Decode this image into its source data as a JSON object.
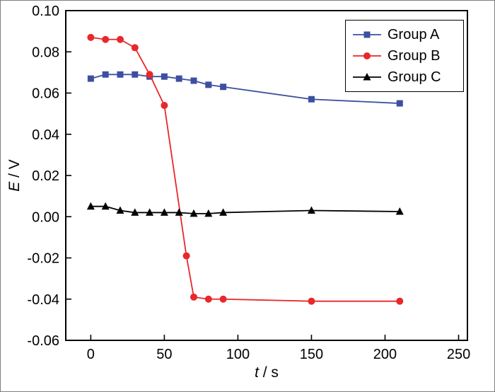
{
  "chart_data": {
    "type": "line",
    "title": "",
    "xlabel": "t / s",
    "xlabel_symbol": "t",
    "xlabel_unit": " / s",
    "ylabel": "E / V",
    "ylabel_symbol": "E",
    "ylabel_unit": " / V",
    "xlim": [
      -17,
      256
    ],
    "ylim": [
      -0.06,
      0.1
    ],
    "xticks": [
      0,
      50,
      100,
      150,
      200,
      250
    ],
    "yticks": [
      -0.06,
      -0.04,
      -0.02,
      0.0,
      0.02,
      0.04,
      0.06,
      0.08,
      0.1
    ],
    "ytick_decimals": 2,
    "grid": false,
    "legend_position": "top-right",
    "series": [
      {
        "name": "Group A",
        "color": "#3d4fa1",
        "marker": "square",
        "x": [
          0,
          10,
          20,
          30,
          40,
          50,
          60,
          70,
          80,
          90,
          150,
          210
        ],
        "y": [
          0.067,
          0.069,
          0.069,
          0.069,
          0.068,
          0.068,
          0.067,
          0.066,
          0.064,
          0.063,
          0.057,
          0.055
        ]
      },
      {
        "name": "Group B",
        "color": "#e8282a",
        "marker": "circle",
        "x": [
          0,
          10,
          20,
          30,
          40,
          50,
          65,
          70,
          80,
          90,
          150,
          210
        ],
        "y": [
          0.087,
          0.086,
          0.086,
          0.082,
          0.069,
          0.054,
          -0.019,
          -0.039,
          -0.04,
          -0.04,
          -0.041,
          -0.041
        ]
      },
      {
        "name": "Group C",
        "color": "#000000",
        "marker": "triangle",
        "x": [
          0,
          10,
          20,
          30,
          40,
          50,
          60,
          70,
          80,
          90,
          150,
          210
        ],
        "y": [
          0.005,
          0.005,
          0.003,
          0.002,
          0.002,
          0.002,
          0.002,
          0.0015,
          0.0015,
          0.002,
          0.003,
          0.0025
        ]
      }
    ]
  }
}
